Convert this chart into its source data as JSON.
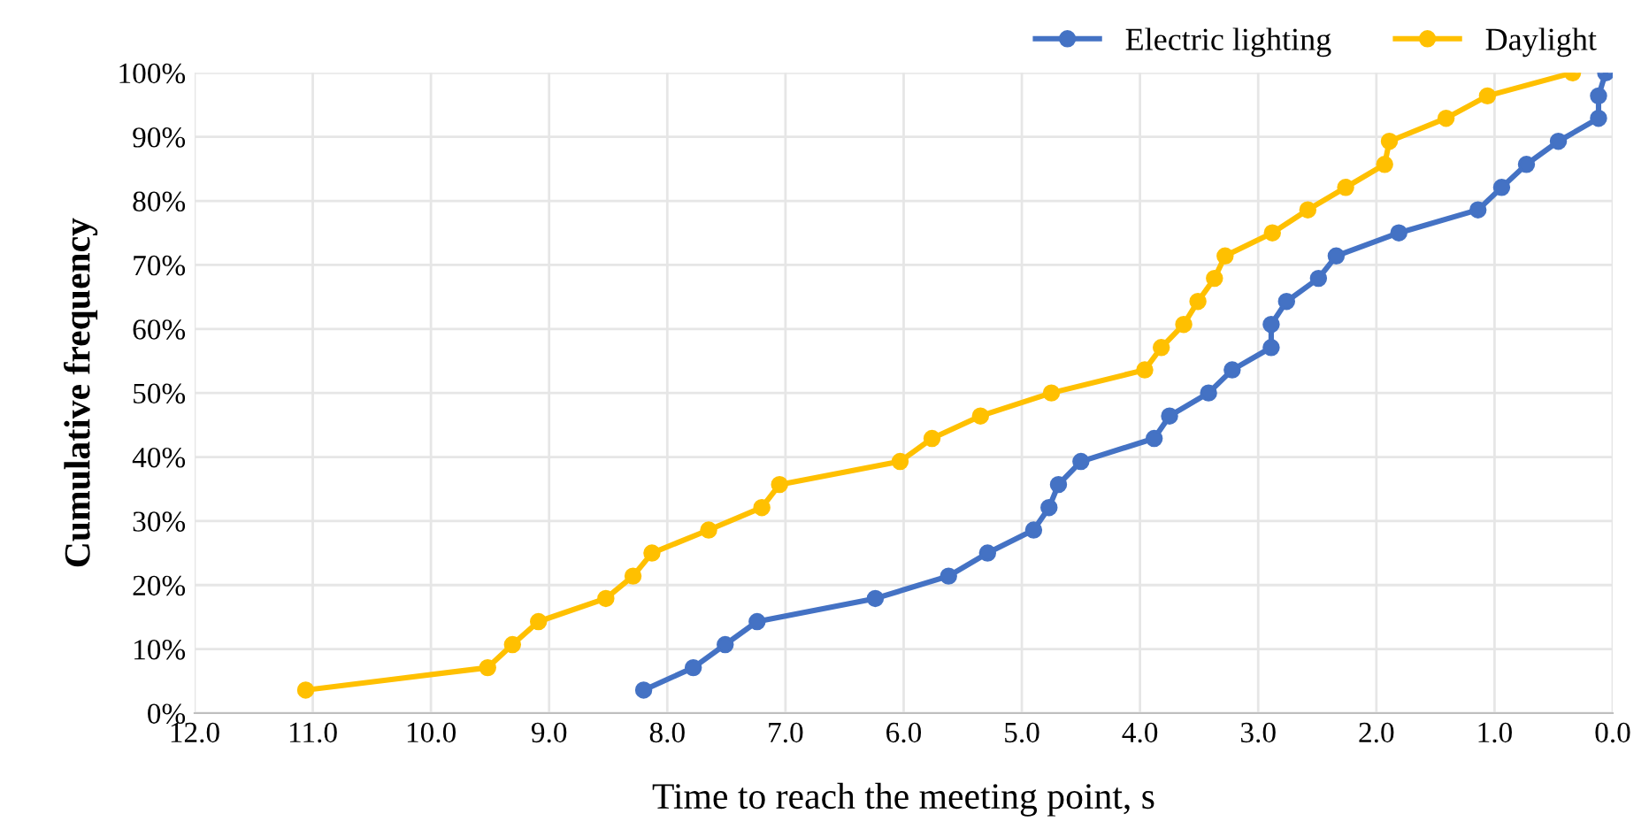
{
  "chart_data": {
    "type": "line",
    "xlabel": "Time to reach the meeting point, s",
    "ylabel": "Cumulative frequency",
    "xlim": [
      12.0,
      0.0
    ],
    "xticks": [
      {
        "value": 12,
        "label": "12.0"
      },
      {
        "value": 11,
        "label": "11.0"
      },
      {
        "value": 10,
        "label": "10.0"
      },
      {
        "value": 9,
        "label": "9.0"
      },
      {
        "value": 8,
        "label": "8.0"
      },
      {
        "value": 7,
        "label": "7.0"
      },
      {
        "value": 6,
        "label": "6.0"
      },
      {
        "value": 5,
        "label": "5.0"
      },
      {
        "value": 4,
        "label": "4.0"
      },
      {
        "value": 3,
        "label": "3.0"
      },
      {
        "value": 2,
        "label": "2.0"
      },
      {
        "value": 1,
        "label": "1.0"
      },
      {
        "value": 0,
        "label": "0.0"
      }
    ],
    "ylim": [
      0,
      100
    ],
    "yticks": [
      {
        "value": 0,
        "label": "0%"
      },
      {
        "value": 10,
        "label": "10%"
      },
      {
        "value": 20,
        "label": "20%"
      },
      {
        "value": 30,
        "label": "30%"
      },
      {
        "value": 40,
        "label": "40%"
      },
      {
        "value": 50,
        "label": "50%"
      },
      {
        "value": 60,
        "label": "60%"
      },
      {
        "value": 70,
        "label": "70%"
      },
      {
        "value": 80,
        "label": "80%"
      },
      {
        "value": 90,
        "label": "90%"
      },
      {
        "value": 100,
        "label": "100%"
      }
    ],
    "grid": true,
    "legend": "top right",
    "marker": "circle",
    "line_style": "solid",
    "series": [
      {
        "name": "Electric lighting",
        "color": "#4472c4",
        "x": [
          8.2,
          7.78,
          7.51,
          7.24,
          6.24,
          5.62,
          5.29,
          4.9,
          4.77,
          4.69,
          4.5,
          3.88,
          3.75,
          3.42,
          3.22,
          2.89,
          2.89,
          2.76,
          2.49,
          2.34,
          1.81,
          1.14,
          0.94,
          0.73,
          0.46,
          0.12,
          0.12,
          0.06
        ],
        "values": [
          3.6,
          7.1,
          10.7,
          14.3,
          17.9,
          21.4,
          25.0,
          28.6,
          32.1,
          35.7,
          39.3,
          42.9,
          46.4,
          50.0,
          53.6,
          57.1,
          60.7,
          64.3,
          67.9,
          71.4,
          75.0,
          78.6,
          82.1,
          85.7,
          89.3,
          92.9,
          96.4,
          100.0
        ]
      },
      {
        "name": "Daylight",
        "color": "#ffc000",
        "x": [
          11.06,
          9.52,
          9.31,
          9.09,
          8.52,
          8.29,
          8.13,
          7.65,
          7.2,
          7.05,
          6.03,
          5.76,
          5.35,
          4.75,
          3.96,
          3.82,
          3.63,
          3.51,
          3.37,
          3.28,
          2.88,
          2.58,
          2.26,
          1.93,
          1.89,
          1.41,
          1.06,
          0.34
        ],
        "values": [
          3.6,
          7.1,
          10.7,
          14.3,
          17.9,
          21.4,
          25.0,
          28.6,
          32.1,
          35.7,
          39.3,
          42.9,
          46.4,
          50.0,
          53.6,
          57.1,
          60.7,
          64.3,
          67.9,
          71.4,
          75.0,
          78.6,
          82.1,
          85.7,
          89.3,
          92.9,
          96.4,
          100.0
        ]
      }
    ]
  }
}
